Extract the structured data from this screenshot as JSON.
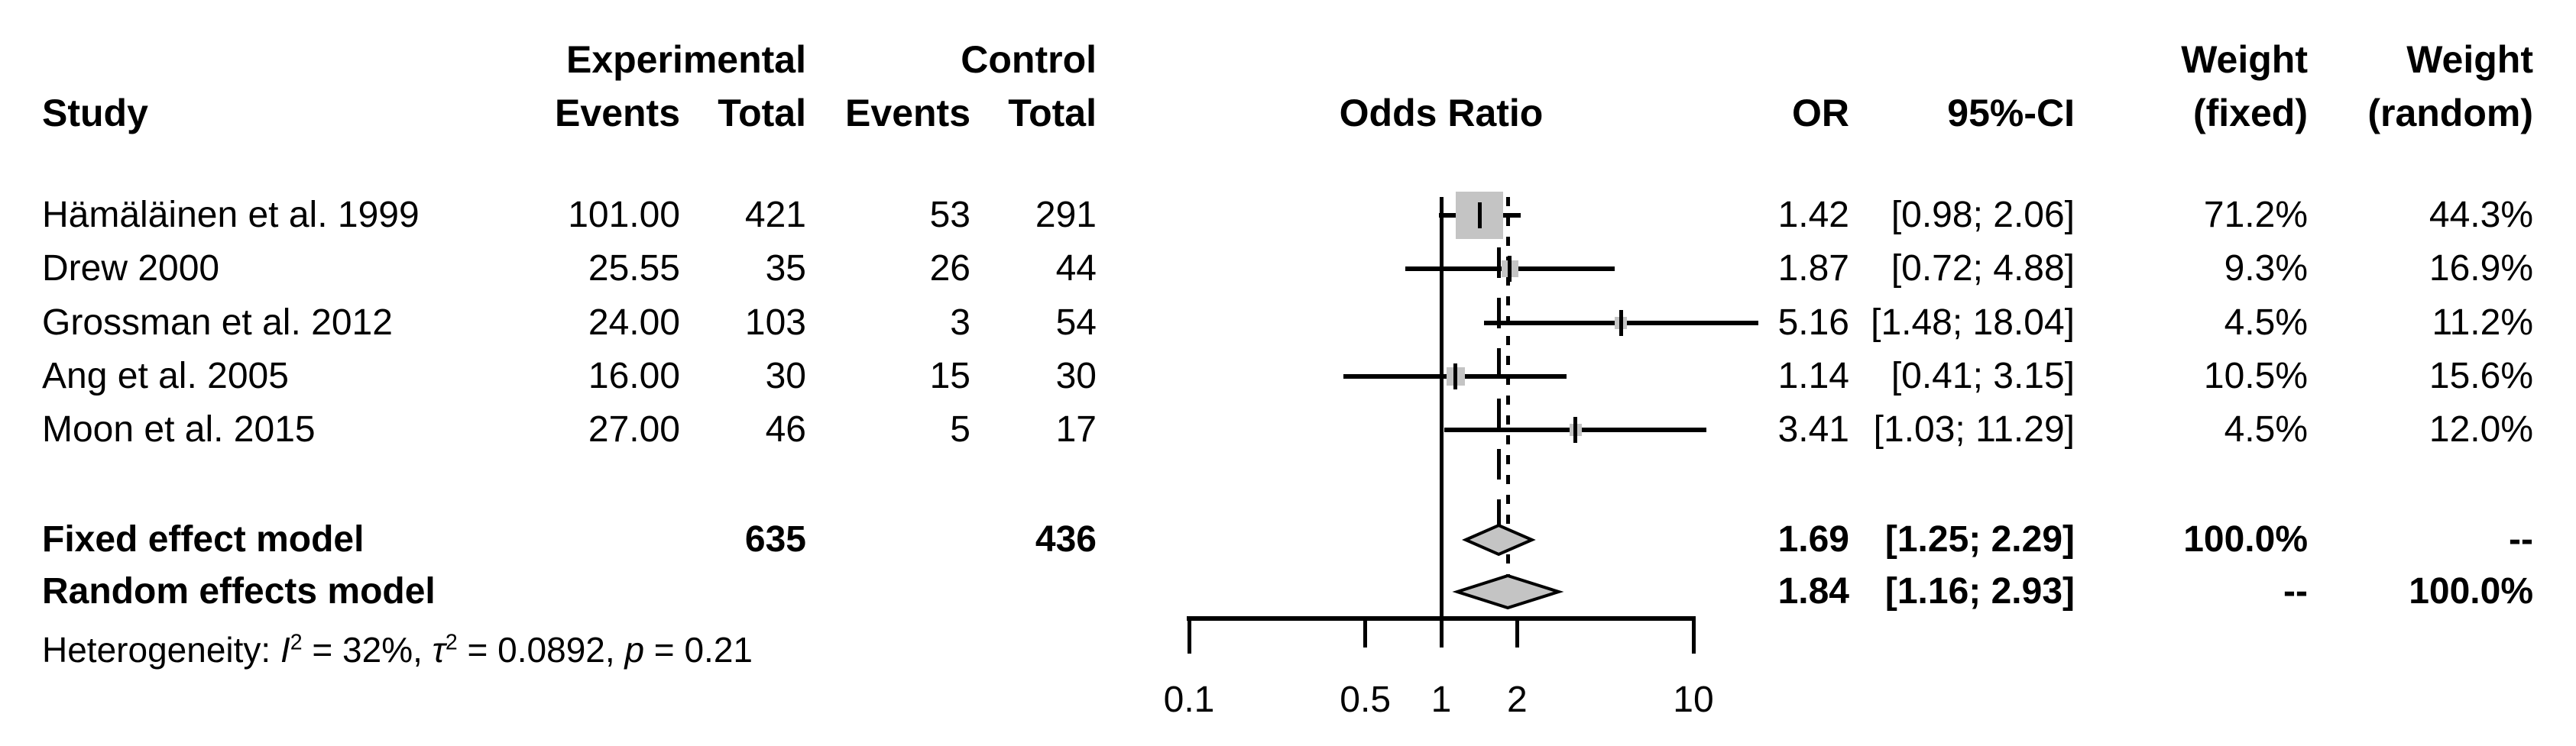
{
  "header": {
    "study": "Study",
    "group_experimental": "Experimental",
    "group_control": "Control",
    "col_events": "Events",
    "col_total": "Total",
    "plot_title": "Odds Ratio",
    "col_or": "OR",
    "col_ci": "95%-CI",
    "col_weight": "Weight",
    "col_weight_fixed_sub": "(fixed)",
    "col_weight_random_sub": "(random)"
  },
  "chart_data": {
    "type": "forest",
    "scale": "log10",
    "xlabel": "",
    "axis_ticks": [
      {
        "value": 0.1,
        "label": "0.1"
      },
      {
        "value": 0.5,
        "label": "0.5"
      },
      {
        "value": 1,
        "label": "1"
      },
      {
        "value": 2,
        "label": "2"
      },
      {
        "value": 10,
        "label": "10"
      }
    ],
    "ref_value": 1,
    "studies": [
      {
        "label": "Hämäläinen et al. 1999",
        "events_exp": "101.00",
        "total_exp": "421",
        "events_ctl": "53",
        "total_ctl": "291",
        "or": 1.42,
        "ci_low": 0.98,
        "ci_high": 2.06,
        "or_label": "1.42",
        "ci_label": "[0.98; 2.06]",
        "weight_fixed": 71.2,
        "weight_random": 44.3,
        "weight_fixed_label": "71.2%",
        "weight_random_label": "44.3%"
      },
      {
        "label": "Drew 2000",
        "events_exp": "25.55",
        "total_exp": "35",
        "events_ctl": "26",
        "total_ctl": "44",
        "or": 1.87,
        "ci_low": 0.72,
        "ci_high": 4.88,
        "or_label": "1.87",
        "ci_label": "[0.72; 4.88]",
        "weight_fixed": 9.3,
        "weight_random": 16.9,
        "weight_fixed_label": "9.3%",
        "weight_random_label": "16.9%"
      },
      {
        "label": "Grossman et al. 2012",
        "events_exp": "24.00",
        "total_exp": "103",
        "events_ctl": "3",
        "total_ctl": "54",
        "or": 5.16,
        "ci_low": 1.48,
        "ci_high": 18.04,
        "or_label": "5.16",
        "ci_label": "[1.48; 18.04]",
        "weight_fixed": 4.5,
        "weight_random": 11.2,
        "weight_fixed_label": "4.5%",
        "weight_random_label": "11.2%"
      },
      {
        "label": "Ang et al. 2005",
        "events_exp": "16.00",
        "total_exp": "30",
        "events_ctl": "15",
        "total_ctl": "30",
        "or": 1.14,
        "ci_low": 0.41,
        "ci_high": 3.15,
        "or_label": "1.14",
        "ci_label": "[0.41; 3.15]",
        "weight_fixed": 10.5,
        "weight_random": 15.6,
        "weight_fixed_label": "10.5%",
        "weight_random_label": "15.6%"
      },
      {
        "label": "Moon et al. 2015",
        "events_exp": "27.00",
        "total_exp": "46",
        "events_ctl": "5",
        "total_ctl": "17",
        "or": 3.41,
        "ci_low": 1.03,
        "ci_high": 11.29,
        "or_label": "3.41",
        "ci_label": "[1.03; 11.29]",
        "weight_fixed": 4.5,
        "weight_random": 12.0,
        "weight_fixed_label": "4.5%",
        "weight_random_label": "12.0%"
      }
    ],
    "summaries": [
      {
        "label": "Fixed effect model",
        "total_exp": "635",
        "total_ctl": "436",
        "or": 1.69,
        "ci_low": 1.25,
        "ci_high": 2.29,
        "or_label": "1.69",
        "ci_label": "[1.25; 2.29]",
        "weight_fixed_label": "100.0%",
        "weight_random_label": "--"
      },
      {
        "label": "Random effects model",
        "total_exp": "",
        "total_ctl": "",
        "or": 1.84,
        "ci_low": 1.16,
        "ci_high": 2.93,
        "or_label": "1.84",
        "ci_label": "[1.16; 2.93]",
        "weight_fixed_label": "--",
        "weight_random_label": "100.0%"
      }
    ],
    "heterogeneity_parts": [
      {
        "text": "Heterogeneity: "
      },
      {
        "text": "I",
        "style": "italic"
      },
      {
        "text": "2",
        "style": "sup"
      },
      {
        "text": " = 32%, "
      },
      {
        "text": "τ",
        "style": "italic"
      },
      {
        "text": "2",
        "style": "sup"
      },
      {
        "text": " = 0.0892, "
      },
      {
        "text": "p",
        "style": "italic"
      },
      {
        "text": " = 0.21"
      }
    ]
  },
  "colors": {
    "marker_fill": "#c4c4c4",
    "line": "#000000",
    "background": "#ffffff"
  }
}
